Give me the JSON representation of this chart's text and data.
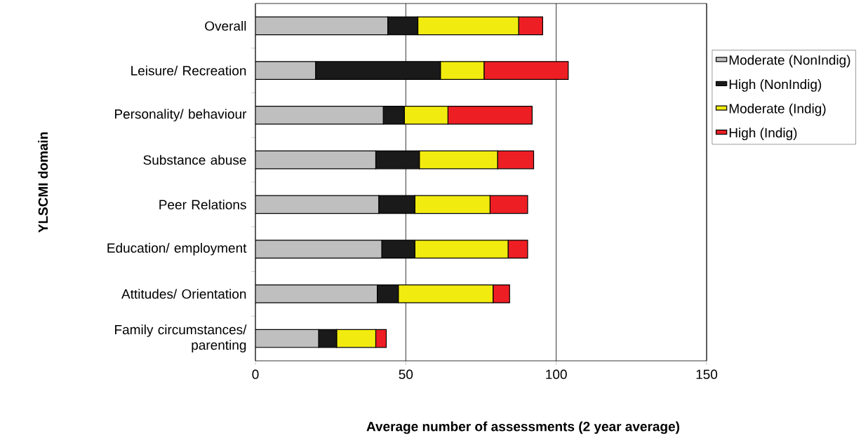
{
  "chart_data": {
    "type": "bar",
    "orientation": "horizontal",
    "stacked": true,
    "categories": [
      "Overall",
      "Leisure/ Recreation",
      "Personality/ behaviour",
      "Substance abuse",
      "Peer Relations",
      "Education/ employment",
      "Attitudes/ Orientation",
      "Family circumstances/ parenting"
    ],
    "series": [
      {
        "name": "Moderate (NonIndig)",
        "color": "#bfbfbf",
        "values": [
          44,
          20,
          42.5,
          40,
          41,
          42,
          40.5,
          21
        ]
      },
      {
        "name": "High (NonIndig)",
        "color": "#1a1a1a",
        "values": [
          10,
          41.5,
          7,
          14.5,
          12,
          11,
          7,
          6
        ]
      },
      {
        "name": "Moderate (Indig)",
        "color": "#f2eb0f",
        "values": [
          33.5,
          14.5,
          14.5,
          26,
          25,
          31,
          31.5,
          13
        ]
      },
      {
        "name": "High (Indig)",
        "color": "#ee1f24",
        "values": [
          8,
          28,
          28,
          12,
          12.5,
          6.5,
          5.5,
          3.5
        ]
      }
    ],
    "xlim": [
      0,
      150
    ],
    "xticks": [
      0,
      50,
      100,
      150
    ],
    "xlabel": "Average number of assessments (2 year average)",
    "ylabel": "YLSCMI domain",
    "grid": "x",
    "legend": "right"
  }
}
